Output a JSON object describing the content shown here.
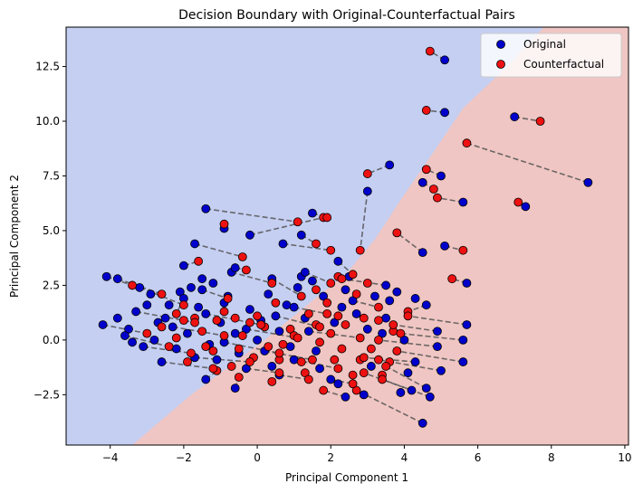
{
  "chart_data": {
    "type": "scatter",
    "title": "Decision Boundary with Original-Counterfactual Pairs",
    "xlabel": "Principal Component 1",
    "ylabel": "Principal Component 2",
    "xlim": [
      -5.2,
      10.1
    ],
    "ylim": [
      -4.8,
      14.3
    ],
    "xticks": [
      -4,
      -2,
      0,
      2,
      4,
      6,
      8,
      10
    ],
    "yticks": [
      -2.5,
      0.0,
      2.5,
      5.0,
      7.5,
      10.0,
      12.5
    ],
    "xtick_labels": [
      "−4",
      "−2",
      "0",
      "2",
      "4",
      "6",
      "8",
      "10"
    ],
    "ytick_labels": [
      "−2.5",
      "0.0",
      "2.5",
      "5.0",
      "7.5",
      "10.0",
      "12.5"
    ],
    "grid": false,
    "legend_position": "top-right",
    "legend": [
      {
        "label": "Original",
        "color": "#0000cc"
      },
      {
        "label": "Counterfactual",
        "color": "#ee1111"
      }
    ],
    "colors": {
      "region_original": "#c5cff2",
      "region_counterfactual": "#efc6c3",
      "pair_line": "#555555",
      "marker_edge": "#000000"
    },
    "decision_boundary": [
      [
        -3.4,
        -4.8
      ],
      [
        -1.8,
        -2.5
      ],
      [
        0.2,
        0.0
      ],
      [
        1.5,
        1.8
      ],
      [
        2.4,
        3.0
      ],
      [
        3.2,
        4.6
      ],
      [
        3.9,
        6.4
      ],
      [
        4.8,
        8.6
      ],
      [
        5.6,
        10.6
      ],
      [
        6.8,
        12.5
      ],
      [
        7.8,
        14.3
      ]
    ],
    "pairs": [
      {
        "original": [
          5.1,
          12.8
        ],
        "counterfactual": [
          4.7,
          13.2
        ]
      },
      {
        "original": [
          5.1,
          10.4
        ],
        "counterfactual": [
          4.6,
          10.5
        ]
      },
      {
        "original": [
          7.0,
          10.2
        ],
        "counterfactual": [
          7.7,
          10.0
        ]
      },
      {
        "original": [
          9.0,
          7.2
        ],
        "counterfactual": [
          5.7,
          9.0
        ]
      },
      {
        "original": [
          3.6,
          8.0
        ],
        "counterfactual": [
          3.0,
          7.6
        ]
      },
      {
        "original": [
          5.0,
          7.5
        ],
        "counterfactual": [
          4.6,
          7.8
        ]
      },
      {
        "original": [
          4.5,
          7.2
        ],
        "counterfactual": [
          4.8,
          6.9
        ]
      },
      {
        "original": [
          5.6,
          6.3
        ],
        "counterfactual": [
          4.9,
          6.5
        ]
      },
      {
        "original": [
          7.3,
          6.1
        ],
        "counterfactual": [
          7.1,
          6.3
        ]
      },
      {
        "original": [
          3.0,
          6.8
        ],
        "counterfactual": [
          2.8,
          4.1
        ]
      },
      {
        "original": [
          -1.4,
          6.0
        ],
        "counterfactual": [
          1.1,
          5.4
        ]
      },
      {
        "original": [
          -0.9,
          5.1
        ],
        "counterfactual": [
          -0.9,
          5.3
        ]
      },
      {
        "original": [
          -0.2,
          4.8
        ],
        "counterfactual": [
          1.8,
          5.6
        ]
      },
      {
        "original": [
          1.5,
          5.8
        ],
        "counterfactual": [
          1.9,
          5.6
        ]
      },
      {
        "original": [
          1.2,
          4.8
        ],
        "counterfactual": [
          1.6,
          4.4
        ]
      },
      {
        "original": [
          0.7,
          4.4
        ],
        "counterfactual": [
          2.0,
          4.1
        ]
      },
      {
        "original": [
          -1.7,
          4.4
        ],
        "counterfactual": [
          -0.4,
          3.8
        ]
      },
      {
        "original": [
          4.5,
          4.0
        ],
        "counterfactual": [
          3.8,
          4.9
        ]
      },
      {
        "original": [
          5.1,
          4.3
        ],
        "counterfactual": [
          5.6,
          4.1
        ]
      },
      {
        "original": [
          5.7,
          2.6
        ],
        "counterfactual": [
          5.3,
          2.8
        ]
      },
      {
        "original": [
          3.5,
          2.5
        ],
        "counterfactual": [
          2.3,
          2.8
        ]
      },
      {
        "original": [
          -4.1,
          2.9
        ],
        "counterfactual": [
          -3.4,
          2.5
        ]
      },
      {
        "original": [
          -3.8,
          2.8
        ],
        "counterfactual": [
          -2.6,
          2.1
        ]
      },
      {
        "original": [
          -3.2,
          2.4
        ],
        "counterfactual": [
          -2.0,
          1.6
        ]
      },
      {
        "original": [
          -1.5,
          2.3
        ],
        "counterfactual": [
          -0.8,
          1.9
        ]
      },
      {
        "original": [
          -0.7,
          3.1
        ],
        "counterfactual": [
          0.4,
          2.6
        ]
      },
      {
        "original": [
          -0.6,
          3.3
        ],
        "counterfactual": [
          -0.3,
          3.2
        ]
      },
      {
        "original": [
          -2.0,
          3.4
        ],
        "counterfactual": [
          -1.6,
          3.6
        ]
      },
      {
        "original": [
          0.4,
          2.8
        ],
        "counterfactual": [
          1.2,
          2.0
        ]
      },
      {
        "original": [
          1.3,
          3.1
        ],
        "counterfactual": [
          2.0,
          2.6
        ]
      },
      {
        "original": [
          2.2,
          3.6
        ],
        "counterfactual": [
          2.6,
          3.0
        ]
      },
      {
        "original": [
          4.6,
          1.6
        ],
        "counterfactual": [
          4.1,
          1.3
        ]
      },
      {
        "original": [
          5.7,
          0.7
        ],
        "counterfactual": [
          4.1,
          1.1
        ]
      },
      {
        "original": [
          4.9,
          0.4
        ],
        "counterfactual": [
          3.7,
          0.7
        ]
      },
      {
        "original": [
          5.6,
          0.0
        ],
        "counterfactual": [
          3.9,
          0.3
        ]
      },
      {
        "original": [
          4.9,
          -0.3
        ],
        "counterfactual": [
          3.3,
          0.0
        ]
      },
      {
        "original": [
          5.6,
          -1.0
        ],
        "counterfactual": [
          3.8,
          -0.5
        ]
      },
      {
        "original": [
          5.0,
          -1.4
        ],
        "counterfactual": [
          3.3,
          -0.9
        ]
      },
      {
        "original": [
          4.7,
          -2.6
        ],
        "counterfactual": [
          3.4,
          -1.8
        ]
      },
      {
        "original": [
          4.5,
          -3.8
        ],
        "counterfactual": [
          2.7,
          -2.3
        ]
      },
      {
        "original": [
          4.2,
          -2.3
        ],
        "counterfactual": [
          2.9,
          -1.5
        ]
      },
      {
        "original": [
          4.6,
          -2.2
        ],
        "counterfactual": [
          3.5,
          -1.2
        ]
      },
      {
        "original": [
          4.3,
          -1.0
        ],
        "counterfactual": [
          2.9,
          -0.8
        ]
      },
      {
        "original": [
          2.4,
          -2.6
        ],
        "counterfactual": [
          1.8,
          -2.3
        ]
      },
      {
        "original": [
          -1.4,
          -1.8
        ],
        "counterfactual": [
          -1.1,
          -1.4
        ]
      },
      {
        "original": [
          -0.6,
          -2.2
        ],
        "counterfactual": [
          -0.5,
          -1.7
        ]
      },
      {
        "original": [
          -2.0,
          1.9
        ],
        "counterfactual": [
          -2.2,
          1.2
        ]
      },
      {
        "original": [
          -4.2,
          0.7
        ],
        "counterfactual": [
          -3.0,
          0.3
        ]
      },
      {
        "original": [
          -3.6,
          0.2
        ],
        "counterfactual": [
          -2.4,
          -0.3
        ]
      },
      {
        "original": [
          -3.1,
          -0.3
        ],
        "counterfactual": [
          -1.8,
          -0.6
        ]
      },
      {
        "original": [
          -2.6,
          -1.0
        ],
        "counterfactual": [
          -1.2,
          -1.3
        ]
      },
      {
        "original": [
          -1.7,
          -0.8
        ],
        "counterfactual": [
          -0.2,
          -1.0
        ]
      },
      {
        "original": [
          -0.9,
          -0.1
        ],
        "counterfactual": [
          0.6,
          -0.6
        ]
      },
      {
        "original": [
          -0.3,
          0.5
        ],
        "counterfactual": [
          1.1,
          0.1
        ]
      },
      {
        "original": [
          0.5,
          1.1
        ],
        "counterfactual": [
          1.7,
          0.6
        ]
      },
      {
        "original": [
          1.0,
          1.5
        ],
        "counterfactual": [
          2.2,
          1.1
        ]
      },
      {
        "original": [
          0.2,
          -0.5
        ],
        "counterfactual": [
          1.5,
          -0.9
        ]
      },
      {
        "original": [
          1.0,
          -0.9
        ],
        "counterfactual": [
          2.2,
          -1.3
        ]
      },
      {
        "original": [
          1.4,
          0.4
        ],
        "counterfactual": [
          2.8,
          0.1
        ]
      },
      {
        "original": [
          -2.3,
          0.6
        ],
        "counterfactual": [
          -0.9,
          0.2
        ]
      },
      {
        "original": [
          -1.4,
          1.2
        ],
        "counterfactual": [
          0.1,
          0.7
        ]
      },
      {
        "original": [
          -3.3,
          1.3
        ],
        "counterfactual": [
          -1.7,
          0.8
        ]
      },
      {
        "original": [
          2.6,
          1.8
        ],
        "counterfactual": [
          3.3,
          1.5
        ]
      },
      {
        "original": [
          2.0,
          -1.8
        ],
        "counterfactual": [
          2.6,
          -2.0
        ]
      },
      {
        "original": [
          0.6,
          -1.6
        ],
        "counterfactual": [
          1.4,
          -1.8
        ]
      },
      {
        "original": [
          -0.3,
          -1.3
        ],
        "counterfactual": [
          0.6,
          -1.5
        ]
      }
    ],
    "original_only": [
      [
        -3.8,
        1.0
      ],
      [
        -3.5,
        0.5
      ],
      [
        -3.0,
        1.6
      ],
      [
        -2.8,
        0.0
      ],
      [
        -2.5,
        1.0
      ],
      [
        -2.2,
        -0.4
      ],
      [
        -2.1,
        2.2
      ],
      [
        -1.9,
        0.3
      ],
      [
        -1.6,
        1.5
      ],
      [
        -1.3,
        -0.2
      ],
      [
        -1.2,
        2.6
      ],
      [
        -1.0,
        0.8
      ],
      [
        -0.8,
        2.0
      ],
      [
        -0.5,
        -0.6
      ],
      [
        -0.2,
        1.4
      ],
      [
        0.0,
        0.0
      ],
      [
        0.3,
        2.1
      ],
      [
        0.6,
        0.4
      ],
      [
        0.9,
        -0.3
      ],
      [
        1.1,
        2.4
      ],
      [
        1.3,
        1.0
      ],
      [
        1.6,
        -0.5
      ],
      [
        1.8,
        2.0
      ],
      [
        2.1,
        0.8
      ],
      [
        2.4,
        2.3
      ],
      [
        2.7,
        1.2
      ],
      [
        3.0,
        0.5
      ],
      [
        3.2,
        2.0
      ],
      [
        3.5,
        1.0
      ],
      [
        3.8,
        2.2
      ],
      [
        4.0,
        0.0
      ],
      [
        4.3,
        1.9
      ],
      [
        2.2,
        -2.0
      ],
      [
        1.7,
        -1.3
      ],
      [
        3.1,
        -1.2
      ],
      [
        2.9,
        -2.5
      ],
      [
        -3.4,
        -0.1
      ],
      [
        -2.7,
        0.8
      ],
      [
        -1.8,
        2.4
      ],
      [
        -0.9,
        1.7
      ],
      [
        0.1,
        0.9
      ],
      [
        0.8,
        1.6
      ],
      [
        1.5,
        2.7
      ],
      [
        2.3,
        1.5
      ],
      [
        3.4,
        0.3
      ],
      [
        3.6,
        1.8
      ],
      [
        4.1,
        -1.5
      ],
      [
        3.9,
        -2.4
      ],
      [
        -2.9,
        2.1
      ],
      [
        -2.4,
        1.6
      ],
      [
        -1.1,
        -0.9
      ],
      [
        0.4,
        -1.2
      ],
      [
        -0.6,
        0.3
      ],
      [
        1.2,
        2.9
      ],
      [
        2.5,
        2.9
      ],
      [
        -1.5,
        2.8
      ]
    ],
    "counterfactual_only": [
      [
        -2.6,
        0.6
      ],
      [
        -2.2,
        0.1
      ],
      [
        -1.9,
        -1.0
      ],
      [
        -1.5,
        0.4
      ],
      [
        -1.2,
        -0.5
      ],
      [
        -0.9,
        1.3
      ],
      [
        -0.7,
        -1.2
      ],
      [
        -0.4,
        0.2
      ],
      [
        -0.1,
        -0.8
      ],
      [
        0.2,
        0.6
      ],
      [
        0.4,
        -1.9
      ],
      [
        0.7,
        -0.2
      ],
      [
        0.9,
        0.5
      ],
      [
        1.2,
        -1.0
      ],
      [
        1.4,
        1.2
      ],
      [
        1.7,
        -0.1
      ],
      [
        1.9,
        1.7
      ],
      [
        2.1,
        -0.9
      ],
      [
        2.4,
        0.7
      ],
      [
        2.6,
        -1.6
      ],
      [
        2.9,
        1.0
      ],
      [
        3.1,
        -0.4
      ],
      [
        3.3,
        0.9
      ],
      [
        3.6,
        -1.0
      ],
      [
        -1.7,
        1.0
      ],
      [
        -1.1,
        0.9
      ],
      [
        -0.5,
        -0.4
      ],
      [
        0.0,
        1.1
      ],
      [
        0.6,
        -0.9
      ],
      [
        1.0,
        0.2
      ],
      [
        1.6,
        0.7
      ],
      [
        2.0,
        0.3
      ],
      [
        2.3,
        -0.4
      ],
      [
        2.8,
        -0.9
      ],
      [
        3.4,
        -1.6
      ],
      [
        1.3,
        -1.5
      ],
      [
        0.3,
        -0.3
      ],
      [
        -0.2,
        0.8
      ],
      [
        -1.4,
        -0.3
      ],
      [
        -2.0,
        0.9
      ],
      [
        2.7,
        2.1
      ],
      [
        3.0,
        2.6
      ],
      [
        1.6,
        2.3
      ],
      [
        2.2,
        2.9
      ],
      [
        1.9,
        1.2
      ],
      [
        0.5,
        1.7
      ],
      [
        -0.6,
        1.0
      ],
      [
        3.7,
        0.4
      ]
    ]
  }
}
